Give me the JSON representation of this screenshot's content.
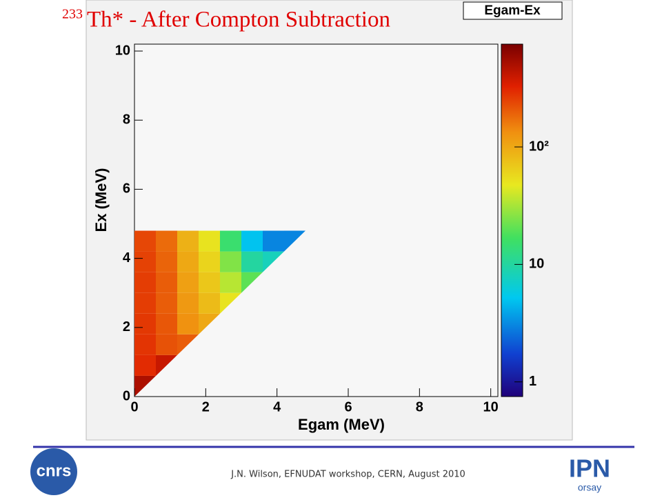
{
  "chart_data": {
    "type": "heatmap",
    "title_superscript": "233",
    "title": "Th* - After Compton Subtraction",
    "legend": "Egam-Ex",
    "xlabel": "Egam (MeV)",
    "ylabel": "Ex (MeV)",
    "xlim": [
      0,
      10.2
    ],
    "ylim": [
      0,
      10.2
    ],
    "xticks": [
      0,
      2,
      4,
      6,
      8,
      10
    ],
    "yticks": [
      0,
      2,
      4,
      6,
      8,
      10
    ],
    "x_bins": [
      0,
      0.6,
      1.2,
      1.8,
      2.4,
      3.0,
      3.6,
      4.2,
      4.8
    ],
    "y_bins": [
      0,
      0.6,
      1.2,
      1.8,
      2.4,
      3.0,
      3.6,
      4.2,
      4.8
    ],
    "values": [
      [
        500,
        null,
        null,
        null,
        null,
        null,
        null,
        null
      ],
      [
        300,
        400,
        null,
        null,
        null,
        null,
        null,
        null
      ],
      [
        280,
        220,
        200,
        null,
        null,
        null,
        null,
        null
      ],
      [
        270,
        210,
        130,
        100,
        null,
        null,
        null,
        null
      ],
      [
        260,
        200,
        120,
        80,
        50,
        null,
        null,
        null
      ],
      [
        260,
        200,
        110,
        70,
        35,
        20,
        null,
        null
      ],
      [
        250,
        190,
        100,
        60,
        25,
        10,
        8,
        null
      ],
      [
        240,
        180,
        90,
        50,
        15,
        5,
        3,
        3
      ]
    ],
    "zlim": [
      0.75,
      750
    ],
    "zlog": true,
    "zticks": [
      1,
      10,
      {
        "value": 100,
        "label": "10²"
      }
    ],
    "footer": "J.N. Wilson,  EFNUDAT workshop, CERN, August 2010",
    "logo_left": "cnrs",
    "logo_right": "IPN",
    "logo_right_sub": "orsay"
  }
}
